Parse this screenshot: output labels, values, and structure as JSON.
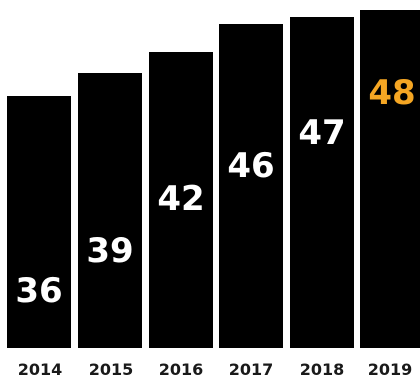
{
  "chart_data": {
    "type": "bar",
    "categories": [
      "2014",
      "2015",
      "2016",
      "2017",
      "2018",
      "2019"
    ],
    "values": [
      36,
      39,
      42,
      46,
      47,
      48
    ],
    "value_labels": [
      "36",
      "39",
      "42",
      "46",
      "47",
      "48"
    ],
    "title": "",
    "xlabel": "",
    "ylabel": "",
    "ylim": [
      0,
      48
    ],
    "grid": false,
    "legend": "none",
    "colors": {
      "bar": "#000000",
      "value_label": "#ffffff",
      "highlight_value_label": "#f5a623",
      "year_label": "#1a1a1a"
    },
    "highlight_index": 5
  }
}
